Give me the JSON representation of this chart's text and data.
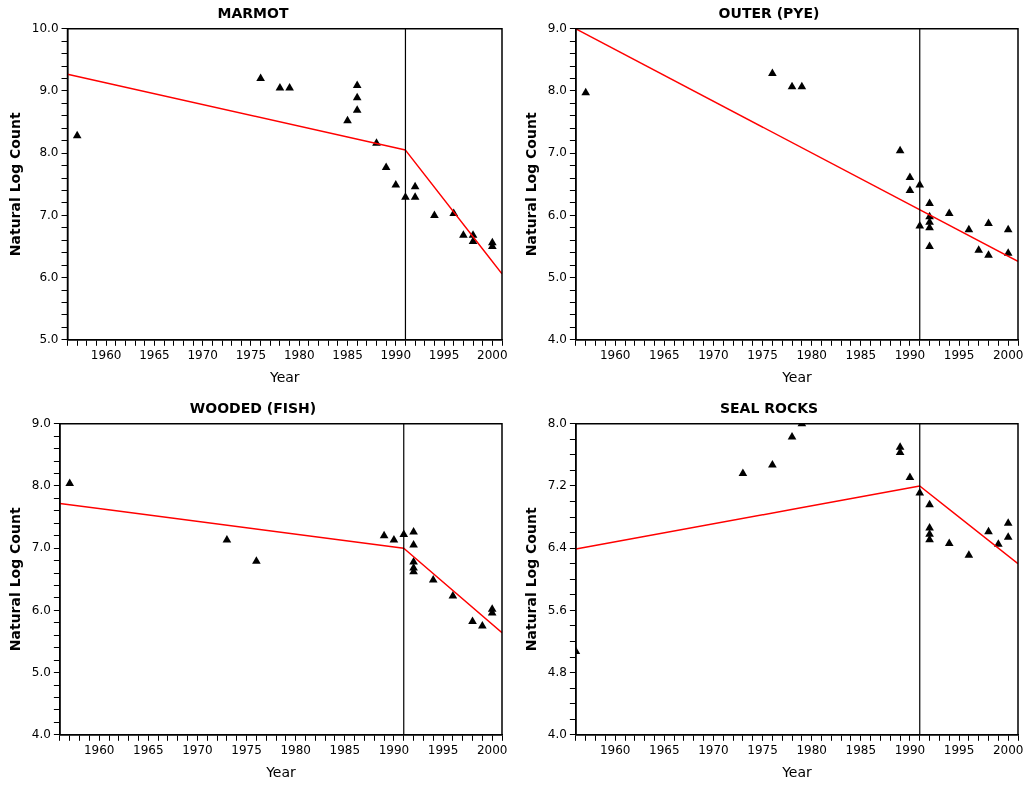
{
  "chart_data": [
    {
      "type": "scatter",
      "title": "MARMOT",
      "xlabel": "Year",
      "ylabel": "Natural Log Count",
      "xlim": [
        1956,
        2001
      ],
      "ylim": [
        5,
        10
      ],
      "xticks": [
        {
          "value": 1956,
          "label": null
        },
        {
          "value": 1957,
          "label": null
        },
        {
          "value": 1958,
          "label": null
        },
        {
          "value": 1959,
          "label": null
        },
        1960,
        {
          "value": 1961,
          "label": null
        },
        {
          "value": 1962,
          "label": null
        },
        {
          "value": 1963,
          "label": null
        },
        {
          "value": 1964,
          "label": null
        },
        1965,
        {
          "value": 1966,
          "label": null
        },
        {
          "value": 1967,
          "label": null
        },
        {
          "value": 1968,
          "label": null
        },
        {
          "value": 1969,
          "label": null
        },
        1970,
        {
          "value": 1971,
          "label": null
        },
        {
          "value": 1972,
          "label": null
        },
        {
          "value": 1973,
          "label": null
        },
        {
          "value": 1974,
          "label": null
        },
        1975,
        {
          "value": 1976,
          "label": null
        },
        {
          "value": 1977,
          "label": null
        },
        {
          "value": 1978,
          "label": null
        },
        {
          "value": 1979,
          "label": null
        },
        1980,
        {
          "value": 1981,
          "label": null
        },
        {
          "value": 1982,
          "label": null
        },
        {
          "value": 1983,
          "label": null
        },
        {
          "value": 1984,
          "label": null
        },
        1985,
        {
          "value": 1986,
          "label": null
        },
        {
          "value": 1987,
          "label": null
        },
        {
          "value": 1988,
          "label": null
        },
        {
          "value": 1989,
          "label": null
        },
        1990,
        {
          "value": 1991,
          "label": null
        },
        {
          "value": 1992,
          "label": null
        },
        {
          "value": 1993,
          "label": null
        },
        {
          "value": 1994,
          "label": null
        },
        1995,
        {
          "value": 1996,
          "label": null
        },
        {
          "value": 1997,
          "label": null
        },
        {
          "value": 1998,
          "label": null
        },
        {
          "value": 1999,
          "label": null
        },
        2000,
        {
          "value": 2001,
          "label": null
        }
      ],
      "yticks": [
        {
          "value": 5,
          "label": "5.0"
        },
        {
          "value": 5.2,
          "label": null
        },
        {
          "value": 5.4,
          "label": null
        },
        {
          "value": 5.6,
          "label": null
        },
        {
          "value": 5.8,
          "label": null
        },
        {
          "value": 6,
          "label": "6.0"
        },
        {
          "value": 6.2,
          "label": null
        },
        {
          "value": 6.4,
          "label": null
        },
        {
          "value": 6.6,
          "label": null
        },
        {
          "value": 6.8,
          "label": null
        },
        {
          "value": 7,
          "label": "7.0"
        },
        {
          "value": 7.2,
          "label": null
        },
        {
          "value": 7.4,
          "label": null
        },
        {
          "value": 7.6,
          "label": null
        },
        {
          "value": 7.8,
          "label": null
        },
        {
          "value": 8,
          "label": "8.0"
        },
        {
          "value": 8.2,
          "label": null
        },
        {
          "value": 8.4,
          "label": null
        },
        {
          "value": 8.6,
          "label": null
        },
        {
          "value": 8.8,
          "label": null
        },
        {
          "value": 9,
          "label": "9.0"
        },
        {
          "value": 9.2,
          "label": null
        },
        {
          "value": 9.4,
          "label": null
        },
        {
          "value": 9.6,
          "label": null
        },
        {
          "value": 9.8,
          "label": null
        },
        {
          "value": 10,
          "label": "10.0"
        }
      ],
      "ref_lines": [
        {
          "axis": "x",
          "value": 1991,
          "color": "#000000"
        }
      ],
      "series": [
        {
          "marker": "triangle",
          "color": "#000000",
          "x": [
            1957,
            1976,
            1978,
            1979,
            1985,
            1986,
            1986,
            1986,
            1988,
            1989,
            1990,
            1991,
            1992,
            1992,
            1994,
            1996,
            1997,
            1998,
            1998,
            2000,
            2000
          ],
          "values": [
            8.28,
            9.2,
            9.05,
            9.05,
            8.52,
            9.09,
            8.89,
            8.69,
            8.16,
            7.77,
            7.49,
            7.29,
            7.29,
            7.46,
            7.0,
            7.03,
            6.68,
            6.68,
            6.58,
            6.56,
            6.5
          ]
        },
        {
          "type": "line",
          "color": "#ff0000",
          "x": [
            1956,
            1991,
            2001
          ],
          "values": [
            9.27,
            8.05,
            6.06
          ]
        }
      ]
    },
    {
      "type": "scatter",
      "title": "OUTER (PYE)",
      "xlabel": "Year",
      "ylabel": "Natural Log Count",
      "xlim": [
        1956,
        2001
      ],
      "ylim": [
        4,
        9
      ],
      "xticks": [
        {
          "value": 1956,
          "label": null
        },
        {
          "value": 1957,
          "label": null
        },
        {
          "value": 1958,
          "label": null
        },
        {
          "value": 1959,
          "label": null
        },
        1960,
        {
          "value": 1961,
          "label": null
        },
        {
          "value": 1962,
          "label": null
        },
        {
          "value": 1963,
          "label": null
        },
        {
          "value": 1964,
          "label": null
        },
        1965,
        {
          "value": 1966,
          "label": null
        },
        {
          "value": 1967,
          "label": null
        },
        {
          "value": 1968,
          "label": null
        },
        {
          "value": 1969,
          "label": null
        },
        1970,
        {
          "value": 1971,
          "label": null
        },
        {
          "value": 1972,
          "label": null
        },
        {
          "value": 1973,
          "label": null
        },
        {
          "value": 1974,
          "label": null
        },
        1975,
        {
          "value": 1976,
          "label": null
        },
        {
          "value": 1977,
          "label": null
        },
        {
          "value": 1978,
          "label": null
        },
        {
          "value": 1979,
          "label": null
        },
        1980,
        {
          "value": 1981,
          "label": null
        },
        {
          "value": 1982,
          "label": null
        },
        {
          "value": 1983,
          "label": null
        },
        {
          "value": 1984,
          "label": null
        },
        1985,
        {
          "value": 1986,
          "label": null
        },
        {
          "value": 1987,
          "label": null
        },
        {
          "value": 1988,
          "label": null
        },
        {
          "value": 1989,
          "label": null
        },
        1990,
        {
          "value": 1991,
          "label": null
        },
        {
          "value": 1992,
          "label": null
        },
        {
          "value": 1993,
          "label": null
        },
        {
          "value": 1994,
          "label": null
        },
        1995,
        {
          "value": 1996,
          "label": null
        },
        {
          "value": 1997,
          "label": null
        },
        {
          "value": 1998,
          "label": null
        },
        {
          "value": 1999,
          "label": null
        },
        2000,
        {
          "value": 2001,
          "label": null
        }
      ],
      "yticks": [
        {
          "value": 4,
          "label": "4.0"
        },
        {
          "value": 4.2,
          "label": null
        },
        {
          "value": 4.4,
          "label": null
        },
        {
          "value": 4.6,
          "label": null
        },
        {
          "value": 4.8,
          "label": null
        },
        {
          "value": 5,
          "label": "5.0"
        },
        {
          "value": 5.2,
          "label": null
        },
        {
          "value": 5.4,
          "label": null
        },
        {
          "value": 5.6,
          "label": null
        },
        {
          "value": 5.8,
          "label": null
        },
        {
          "value": 6,
          "label": "6.0"
        },
        {
          "value": 6.2,
          "label": null
        },
        {
          "value": 6.4,
          "label": null
        },
        {
          "value": 6.6,
          "label": null
        },
        {
          "value": 6.8,
          "label": null
        },
        {
          "value": 7,
          "label": "7.0"
        },
        {
          "value": 7.2,
          "label": null
        },
        {
          "value": 7.4,
          "label": null
        },
        {
          "value": 7.6,
          "label": null
        },
        {
          "value": 7.8,
          "label": null
        },
        {
          "value": 8,
          "label": "8.0"
        },
        {
          "value": 8.2,
          "label": null
        },
        {
          "value": 8.4,
          "label": null
        },
        {
          "value": 8.6,
          "label": null
        },
        {
          "value": 8.8,
          "label": null
        },
        {
          "value": 9,
          "label": "9.0"
        }
      ],
      "ref_lines": [
        {
          "axis": "x",
          "value": 1991,
          "color": "#000000"
        }
      ],
      "series": [
        {
          "marker": "triangle",
          "color": "#000000",
          "x": [
            1957,
            1976,
            1978,
            1979,
            1989,
            1990,
            1990,
            1991,
            1991,
            1992,
            1992,
            1992,
            1992,
            1992,
            1994,
            1996,
            1997,
            1998,
            1998,
            2000,
            2000
          ],
          "values": [
            7.97,
            8.28,
            8.07,
            8.07,
            7.04,
            6.61,
            6.4,
            6.49,
            5.83,
            6.19,
            5.98,
            5.89,
            5.8,
            5.5,
            6.03,
            5.77,
            5.44,
            5.87,
            5.36,
            5.77,
            5.39
          ]
        },
        {
          "type": "line",
          "color": "#ff0000",
          "x": [
            1956,
            2001
          ],
          "values": [
            9.0,
            5.26
          ]
        }
      ]
    },
    {
      "type": "scatter",
      "title": "WOODED (FISH)",
      "xlabel": "Year",
      "ylabel": "Natural Log Count",
      "xlim": [
        1956,
        2001
      ],
      "ylim": [
        4,
        9
      ],
      "xticks": [
        {
          "value": 1956,
          "label": null
        },
        {
          "value": 1957,
          "label": null
        },
        {
          "value": 1958,
          "label": null
        },
        {
          "value": 1959,
          "label": null
        },
        1960,
        {
          "value": 1961,
          "label": null
        },
        {
          "value": 1962,
          "label": null
        },
        {
          "value": 1963,
          "label": null
        },
        {
          "value": 1964,
          "label": null
        },
        1965,
        {
          "value": 1966,
          "label": null
        },
        {
          "value": 1967,
          "label": null
        },
        {
          "value": 1968,
          "label": null
        },
        {
          "value": 1969,
          "label": null
        },
        1970,
        {
          "value": 1971,
          "label": null
        },
        {
          "value": 1972,
          "label": null
        },
        {
          "value": 1973,
          "label": null
        },
        {
          "value": 1974,
          "label": null
        },
        1975,
        {
          "value": 1976,
          "label": null
        },
        {
          "value": 1977,
          "label": null
        },
        {
          "value": 1978,
          "label": null
        },
        {
          "value": 1979,
          "label": null
        },
        1980,
        {
          "value": 1981,
          "label": null
        },
        {
          "value": 1982,
          "label": null
        },
        {
          "value": 1983,
          "label": null
        },
        {
          "value": 1984,
          "label": null
        },
        1985,
        {
          "value": 1986,
          "label": null
        },
        {
          "value": 1987,
          "label": null
        },
        {
          "value": 1988,
          "label": null
        },
        {
          "value": 1989,
          "label": null
        },
        1990,
        {
          "value": 1991,
          "label": null
        },
        {
          "value": 1992,
          "label": null
        },
        {
          "value": 1993,
          "label": null
        },
        {
          "value": 1994,
          "label": null
        },
        1995,
        {
          "value": 1996,
          "label": null
        },
        {
          "value": 1997,
          "label": null
        },
        {
          "value": 1998,
          "label": null
        },
        {
          "value": 1999,
          "label": null
        },
        2000,
        {
          "value": 2001,
          "label": null
        }
      ],
      "yticks": [
        {
          "value": 4,
          "label": "4.0"
        },
        {
          "value": 4.2,
          "label": null
        },
        {
          "value": 4.4,
          "label": null
        },
        {
          "value": 4.6,
          "label": null
        },
        {
          "value": 4.8,
          "label": null
        },
        {
          "value": 5,
          "label": "5.0"
        },
        {
          "value": 5.2,
          "label": null
        },
        {
          "value": 5.4,
          "label": null
        },
        {
          "value": 5.6,
          "label": null
        },
        {
          "value": 5.8,
          "label": null
        },
        {
          "value": 6,
          "label": "6.0"
        },
        {
          "value": 6.2,
          "label": null
        },
        {
          "value": 6.4,
          "label": null
        },
        {
          "value": 6.6,
          "label": null
        },
        {
          "value": 6.8,
          "label": null
        },
        {
          "value": 7,
          "label": "7.0"
        },
        {
          "value": 7.2,
          "label": null
        },
        {
          "value": 7.4,
          "label": null
        },
        {
          "value": 7.6,
          "label": null
        },
        {
          "value": 7.8,
          "label": null
        },
        {
          "value": 8,
          "label": "8.0"
        },
        {
          "value": 8.2,
          "label": null
        },
        {
          "value": 8.4,
          "label": null
        },
        {
          "value": 8.6,
          "label": null
        },
        {
          "value": 8.8,
          "label": null
        },
        {
          "value": 9,
          "label": "9.0"
        }
      ],
      "ref_lines": [
        {
          "axis": "x",
          "value": 1991,
          "color": "#000000"
        }
      ],
      "series": [
        {
          "marker": "triangle",
          "color": "#000000",
          "x": [
            1957,
            1973,
            1976,
            1989,
            1990,
            1991,
            1992,
            1992,
            1992,
            1992,
            1992,
            1994,
            1996,
            1998,
            1999,
            2000,
            2000
          ],
          "values": [
            8.04,
            7.13,
            6.79,
            7.2,
            7.13,
            7.22,
            7.26,
            7.05,
            6.78,
            6.68,
            6.62,
            6.49,
            6.23,
            5.82,
            5.75,
            6.02,
            5.96
          ]
        },
        {
          "type": "line",
          "color": "#ff0000",
          "x": [
            1956,
            1991,
            2001
          ],
          "values": [
            7.72,
            7.0,
            5.64
          ]
        }
      ]
    },
    {
      "type": "scatter",
      "title": "SEAL ROCKS",
      "xlabel": "Year",
      "ylabel": "Natural Log Count",
      "xlim": [
        1956,
        2001
      ],
      "ylim": [
        4,
        8
      ],
      "xticks": [
        {
          "value": 1956,
          "label": null
        },
        {
          "value": 1957,
          "label": null
        },
        {
          "value": 1958,
          "label": null
        },
        {
          "value": 1959,
          "label": null
        },
        1960,
        {
          "value": 1961,
          "label": null
        },
        {
          "value": 1962,
          "label": null
        },
        {
          "value": 1963,
          "label": null
        },
        {
          "value": 1964,
          "label": null
        },
        1965,
        {
          "value": 1966,
          "label": null
        },
        {
          "value": 1967,
          "label": null
        },
        {
          "value": 1968,
          "label": null
        },
        {
          "value": 1969,
          "label": null
        },
        1970,
        {
          "value": 1971,
          "label": null
        },
        {
          "value": 1972,
          "label": null
        },
        {
          "value": 1973,
          "label": null
        },
        {
          "value": 1974,
          "label": null
        },
        1975,
        {
          "value": 1976,
          "label": null
        },
        {
          "value": 1977,
          "label": null
        },
        {
          "value": 1978,
          "label": null
        },
        {
          "value": 1979,
          "label": null
        },
        1980,
        {
          "value": 1981,
          "label": null
        },
        {
          "value": 1982,
          "label": null
        },
        {
          "value": 1983,
          "label": null
        },
        {
          "value": 1984,
          "label": null
        },
        1985,
        {
          "value": 1986,
          "label": null
        },
        {
          "value": 1987,
          "label": null
        },
        {
          "value": 1988,
          "label": null
        },
        {
          "value": 1989,
          "label": null
        },
        1990,
        {
          "value": 1991,
          "label": null
        },
        {
          "value": 1992,
          "label": null
        },
        {
          "value": 1993,
          "label": null
        },
        {
          "value": 1994,
          "label": null
        },
        1995,
        {
          "value": 1996,
          "label": null
        },
        {
          "value": 1997,
          "label": null
        },
        {
          "value": 1998,
          "label": null
        },
        {
          "value": 1999,
          "label": null
        },
        2000,
        {
          "value": 2001,
          "label": null
        }
      ],
      "yticks": [
        {
          "value": 4,
          "label": "4.0"
        },
        {
          "value": 4.2,
          "label": null
        },
        {
          "value": 4.4,
          "label": null
        },
        {
          "value": 4.6,
          "label": null
        },
        4.8,
        {
          "value": 5,
          "label": null
        },
        {
          "value": 5.2,
          "label": null
        },
        {
          "value": 5.4,
          "label": null
        },
        5.6,
        {
          "value": 5.8,
          "label": null
        },
        {
          "value": 6,
          "label": null
        },
        {
          "value": 6.2,
          "label": null
        },
        6.4,
        {
          "value": 6.6,
          "label": null
        },
        {
          "value": 6.8,
          "label": null
        },
        {
          "value": 7,
          "label": null
        },
        7.2,
        {
          "value": 7.4,
          "label": null
        },
        {
          "value": 7.6,
          "label": null
        },
        {
          "value": 7.8,
          "label": null
        },
        {
          "value": 8,
          "label": "8.0"
        }
      ],
      "ref_lines": [
        {
          "axis": "x",
          "value": 1991,
          "color": "#000000"
        }
      ],
      "series": [
        {
          "marker": "triangle",
          "color": "#000000",
          "x": [
            1956,
            1973,
            1976,
            1978,
            1979,
            1989,
            1989,
            1990,
            1991,
            1992,
            1992,
            1992,
            1992,
            1994,
            1996,
            1998,
            1999,
            2000,
            2000
          ],
          "values": [
            5.07,
            7.36,
            7.47,
            7.83,
            8.0,
            7.7,
            7.63,
            7.31,
            7.11,
            6.96,
            6.66,
            6.58,
            6.51,
            6.46,
            6.31,
            6.61,
            6.45,
            6.72,
            6.54
          ]
        },
        {
          "type": "line",
          "color": "#ff0000",
          "x": [
            1956,
            1991,
            2001
          ],
          "values": [
            6.39,
            7.2,
            6.2
          ]
        }
      ]
    }
  ]
}
